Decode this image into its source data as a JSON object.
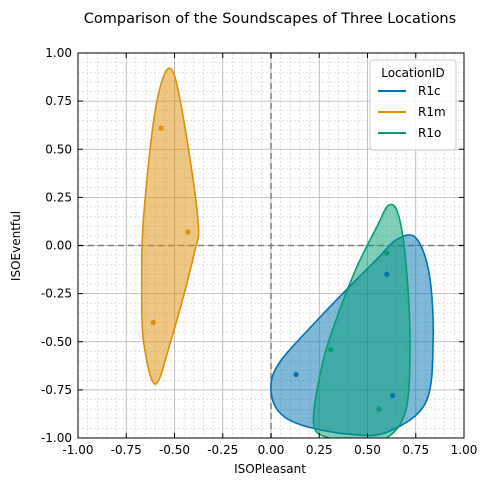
{
  "chart_data": {
    "type": "scatter",
    "title": "Comparison of the Soundscapes of Three Locations",
    "xlabel": "ISOPleasant",
    "ylabel": "ISOEventful",
    "xlim": [
      -1.0,
      1.0
    ],
    "ylim": [
      -1.0,
      1.0
    ],
    "xticks": [
      "-1.00",
      "-0.75",
      "-0.50",
      "-0.25",
      "0.00",
      "0.25",
      "0.50",
      "0.75",
      "1.00"
    ],
    "yticks": [
      "-1.00",
      "-0.75",
      "-0.50",
      "-0.25",
      "0.00",
      "0.25",
      "0.50",
      "0.75",
      "1.00"
    ],
    "grid": true,
    "minor_grid": true,
    "reference_lines": [
      {
        "axis": "x",
        "value": 0
      },
      {
        "axis": "y",
        "value": 0
      }
    ],
    "legend": {
      "title": "LocationID",
      "position": "top-right"
    },
    "series": [
      {
        "name": "R1c",
        "color": "#0173b2",
        "points": [
          [
            0.13,
            -0.67
          ],
          [
            0.6,
            -0.15
          ],
          [
            0.63,
            -0.78
          ]
        ],
        "contour": [
          [
            0.0,
            -0.72
          ],
          [
            0.05,
            -0.6
          ],
          [
            0.2,
            -0.43
          ],
          [
            0.4,
            -0.22
          ],
          [
            0.55,
            -0.07
          ],
          [
            0.65,
            0.03
          ],
          [
            0.75,
            0.04
          ],
          [
            0.82,
            -0.15
          ],
          [
            0.84,
            -0.5
          ],
          [
            0.8,
            -0.82
          ],
          [
            0.6,
            -0.97
          ],
          [
            0.4,
            -0.98
          ],
          [
            0.15,
            -0.93
          ],
          [
            0.03,
            -0.85
          ]
        ]
      },
      {
        "name": "R1m",
        "color": "#de8f05",
        "points": [
          [
            -0.57,
            0.61
          ],
          [
            -0.43,
            0.07
          ],
          [
            -0.61,
            -0.4
          ]
        ],
        "contour": [
          [
            -0.66,
            0.15
          ],
          [
            -0.6,
            0.7
          ],
          [
            -0.53,
            0.92
          ],
          [
            -0.47,
            0.75
          ],
          [
            -0.38,
            0.15
          ],
          [
            -0.4,
            -0.05
          ],
          [
            -0.52,
            -0.5
          ],
          [
            -0.6,
            -0.72
          ],
          [
            -0.66,
            -0.5
          ],
          [
            -0.67,
            -0.2
          ]
        ]
      },
      {
        "name": "R1o",
        "color": "#029e73",
        "points": [
          [
            0.31,
            -0.54
          ],
          [
            0.6,
            -0.04
          ],
          [
            0.56,
            -0.85
          ]
        ],
        "contour": [
          [
            0.22,
            -0.92
          ],
          [
            0.27,
            -0.6
          ],
          [
            0.35,
            -0.35
          ],
          [
            0.45,
            -0.1
          ],
          [
            0.55,
            0.1
          ],
          [
            0.61,
            0.21
          ],
          [
            0.66,
            0.16
          ],
          [
            0.7,
            -0.1
          ],
          [
            0.72,
            -0.5
          ],
          [
            0.7,
            -0.85
          ],
          [
            0.6,
            -1.0
          ],
          [
            0.45,
            -1.02
          ],
          [
            0.3,
            -1.0
          ]
        ]
      }
    ]
  }
}
